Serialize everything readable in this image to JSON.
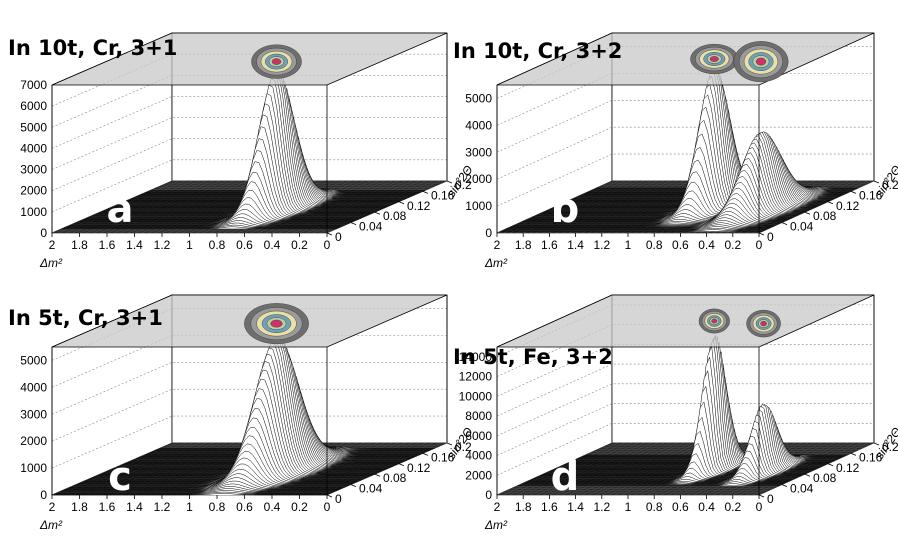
{
  "chart_data": [
    {
      "type": "surface3d",
      "panel_label": "a",
      "title": "In 10t, Cr, 3+1",
      "xlabel": "Δm²",
      "ylabel": "sin²2Θ",
      "x_ticks": [
        "2",
        "1.8",
        "1.6",
        "1.4",
        "1.2",
        "1",
        "0.8",
        "0.6",
        "0.4",
        "0.2",
        "0"
      ],
      "y_ticks": [
        "0",
        "0.04",
        "0.08",
        "0.12",
        "0.16",
        "0.2"
      ],
      "z_ticks": [
        "0",
        "1000",
        "2000",
        "3000",
        "4000",
        "5000",
        "6000",
        "7000"
      ],
      "xlim": [
        2,
        0
      ],
      "ylim": [
        0,
        0.2
      ],
      "zlim": [
        0,
        7000
      ],
      "peaks": [
        {
          "dm2": 0.76,
          "sin22theta": 0.09,
          "height": 6600,
          "width_dm2": 0.07,
          "width_sin": 0.025
        }
      ],
      "contour_on_top": true
    },
    {
      "type": "surface3d",
      "panel_label": "b",
      "title": "In 10t, Cr, 3+2",
      "xlabel": "Δm²",
      "ylabel": "sin²2Θ",
      "x_ticks": [
        "2",
        "1.8",
        "1.6",
        "1.4",
        "1.2",
        "1",
        "0.8",
        "0.6",
        "0.4",
        "0.2",
        "0"
      ],
      "y_ticks": [
        "0",
        "0.04",
        "0.08",
        "0.12",
        "0.16",
        "0.2"
      ],
      "z_ticks": [
        "0",
        "1000",
        "2000",
        "3000",
        "4000",
        "5000"
      ],
      "xlim": [
        2,
        0
      ],
      "ylim": [
        0,
        0.2
      ],
      "zlim": [
        0,
        5500
      ],
      "peaks": [
        {
          "dm2": 0.78,
          "sin22theta": 0.1,
          "height": 5200,
          "width_dm2": 0.07,
          "width_sin": 0.022
        },
        {
          "dm2": 0.38,
          "sin22theta": 0.09,
          "height": 2900,
          "width_dm2": 0.08,
          "width_sin": 0.03
        }
      ],
      "contour_on_top": true
    },
    {
      "type": "surface3d",
      "panel_label": "c",
      "title": "In 5t, Cr, 3+1",
      "xlabel": "Δm²",
      "ylabel": "sin²2Θ",
      "x_ticks": [
        "2",
        "1.8",
        "1.6",
        "1.4",
        "1.2",
        "1",
        "0.8",
        "0.6",
        "0.4",
        "0.2",
        "0"
      ],
      "y_ticks": [
        "0",
        "0.04",
        "0.08",
        "0.12",
        "0.16",
        "0.2"
      ],
      "z_ticks": [
        "0",
        "1000",
        "2000",
        "3000",
        "4000",
        "5000"
      ],
      "xlim": [
        2,
        0
      ],
      "ylim": [
        0,
        0.2
      ],
      "zlim": [
        0,
        5500
      ],
      "peaks": [
        {
          "dm2": 0.76,
          "sin22theta": 0.09,
          "height": 5000,
          "width_dm2": 0.09,
          "width_sin": 0.03
        }
      ],
      "contour_on_top": true
    },
    {
      "type": "surface3d",
      "panel_label": "d",
      "title": "In 5t, Fe, 3+2",
      "xlabel": "Δm²",
      "ylabel": "sin²2Θ",
      "x_ticks": [
        "2",
        "1.8",
        "1.6",
        "1.4",
        "1.2",
        "1",
        "0.8",
        "0.6",
        "0.4",
        "0.2",
        "0"
      ],
      "y_ticks": [
        "0",
        "0.04",
        "0.08",
        "0.12",
        "0.16",
        "0.2"
      ],
      "z_ticks": [
        "0",
        "2000",
        "4000",
        "6000",
        "8000",
        "10000",
        "12000",
        "14000"
      ],
      "xlim": [
        2,
        0
      ],
      "ylim": [
        0,
        0.2
      ],
      "zlim": [
        0,
        15000
      ],
      "peaks": [
        {
          "dm2": 0.78,
          "sin22theta": 0.1,
          "height": 13800,
          "width_dm2": 0.045,
          "width_sin": 0.018
        },
        {
          "dm2": 0.36,
          "sin22theta": 0.09,
          "height": 7000,
          "width_dm2": 0.05,
          "width_sin": 0.02
        }
      ],
      "contour_on_top": true
    }
  ],
  "colors": {
    "floor": "#2a2a2a",
    "mesh": "#5a5a5a",
    "surface_fill": "#ffffff",
    "surface_edge": "#000000",
    "top_plane": "#c8c8c8",
    "grid_line": "#888888",
    "contour_outer": "#9a9a9a",
    "contour_mid": "#e8e0a8",
    "contour_inner": "#6fa0b8",
    "contour_core": "#d0306a"
  }
}
